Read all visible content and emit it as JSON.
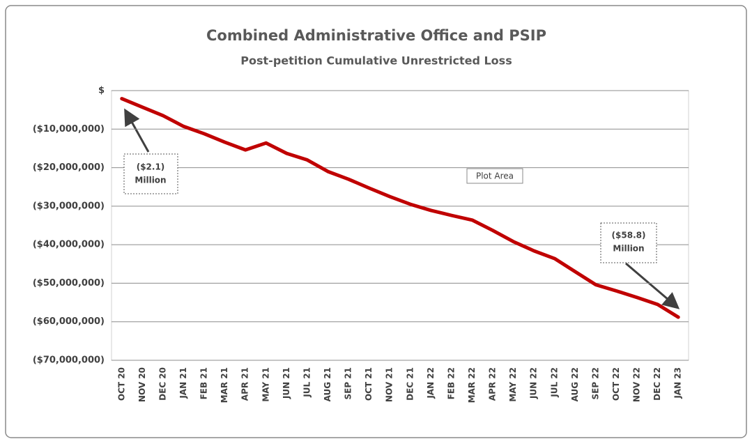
{
  "chart_data": {
    "type": "line",
    "title": "Combined Administrative Office and PSIP",
    "subtitle": "Post-petition Cumulative Unrestricted Loss",
    "categories": [
      "OCT 20",
      "NOV 20",
      "DEC 20",
      "JAN 21",
      "FEB 21",
      "MAR 21",
      "APR 21",
      "MAY 21",
      "JUN 21",
      "JUL 21",
      "AUG 21",
      "SEP 21",
      "OCT 21",
      "NOV 21",
      "DEC 21",
      "JAN 22",
      "FEB 22",
      "MAR 22",
      "APR 22",
      "MAY 22",
      "JUN 22",
      "JUL 22",
      "AUG 22",
      "SEP 22",
      "OCT 22",
      "NOV 22",
      "DEC 22",
      "JAN 23"
    ],
    "series": [
      {
        "name": "Cumulative Unrestricted Loss",
        "color": "#c00000",
        "values": [
          -2100000,
          -4300000,
          -6500000,
          -9300000,
          -11200000,
          -13400000,
          -15400000,
          -13600000,
          -16300000,
          -18000000,
          -21000000,
          -23000000,
          -25300000,
          -27500000,
          -29500000,
          -31100000,
          -32400000,
          -33600000,
          -36300000,
          -39200000,
          -41600000,
          -43600000,
          -47000000,
          -50400000,
          -52000000,
          -53700000,
          -55500000,
          -58800000
        ]
      }
    ],
    "ylim": [
      -70000000,
      0
    ],
    "yticks": [
      {
        "value": 0,
        "label": "$"
      },
      {
        "value": -10000000,
        "label": "($10,000,000)"
      },
      {
        "value": -20000000,
        "label": "($20,000,000)"
      },
      {
        "value": -30000000,
        "label": "($30,000,000)"
      },
      {
        "value": -40000000,
        "label": "($40,000,000)"
      },
      {
        "value": -50000000,
        "label": "($50,000,000)"
      },
      {
        "value": -60000000,
        "label": "($60,000,000)"
      },
      {
        "value": -70000000,
        "label": "($70,000,000)"
      }
    ],
    "grid": true,
    "annotations": [
      {
        "lines": [
          "($2.1)",
          "Million"
        ]
      },
      {
        "lines": [
          "($58.8)",
          "Million"
        ]
      },
      {
        "lines": [
          "Plot Area"
        ]
      }
    ]
  }
}
